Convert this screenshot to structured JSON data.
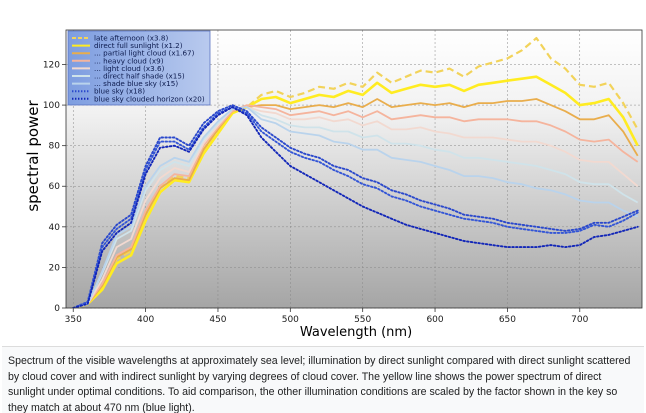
{
  "chart_data": {
    "type": "line",
    "title": "",
    "xlabel": "Wavelength (nm)",
    "ylabel": "spectral power",
    "xlim": [
      345,
      743
    ],
    "ylim": [
      0,
      137
    ],
    "xticks": [
      350,
      400,
      450,
      500,
      550,
      600,
      650,
      700
    ],
    "yticks": [
      0,
      20,
      40,
      60,
      80,
      100,
      120
    ],
    "grid": true,
    "legend_position": "top-left",
    "x": [
      350,
      360,
      370,
      380,
      390,
      400,
      410,
      420,
      430,
      440,
      450,
      460,
      470,
      480,
      490,
      500,
      510,
      520,
      530,
      540,
      550,
      560,
      570,
      580,
      590,
      600,
      610,
      620,
      630,
      640,
      650,
      660,
      670,
      680,
      690,
      700,
      710,
      720,
      730,
      740
    ],
    "series": [
      {
        "name": "late afternoon (x3.8)",
        "color": "#f2d35a",
        "style": "dashed",
        "width": 2.2,
        "values": [
          0,
          2,
          10,
          24,
          28,
          46,
          60,
          65,
          64,
          78,
          88,
          97,
          99,
          105,
          107,
          104,
          106,
          109,
          108,
          111,
          109,
          116,
          111,
          114,
          117,
          116,
          118,
          114,
          119,
          121,
          123,
          127,
          133,
          123,
          118,
          110,
          109,
          111,
          101,
          88
        ]
      },
      {
        "name": "direct full sunlight (x1.2)",
        "color": "#ffec21",
        "style": "solid",
        "width": 2.6,
        "values": [
          0,
          2,
          9,
          22,
          26,
          43,
          57,
          63,
          62,
          76,
          86,
          96,
          99,
          103,
          104,
          101,
          103,
          105,
          104,
          107,
          105,
          111,
          106,
          108,
          110,
          109,
          110,
          107,
          110,
          111,
          112,
          113,
          114,
          110,
          106,
          100,
          101,
          103,
          94,
          80
        ]
      },
      {
        "name": "... partial light cloud (x1.67)",
        "color": "#e9ad4c",
        "style": "solid",
        "width": 1.8,
        "values": [
          0,
          2,
          11,
          25,
          29,
          46,
          59,
          64,
          63,
          78,
          88,
          97,
          99,
          100,
          100,
          98,
          99,
          100,
          99,
          101,
          99,
          103,
          99,
          100,
          101,
          100,
          101,
          99,
          101,
          101,
          102,
          102,
          103,
          100,
          97,
          93,
          93,
          95,
          87,
          75
        ]
      },
      {
        "name": "... heavy cloud (x9)",
        "color": "#f5b49d",
        "style": "solid",
        "width": 1.8,
        "values": [
          0,
          2,
          12,
          26,
          30,
          48,
          60,
          66,
          65,
          80,
          89,
          97,
          100,
          99,
          98,
          95,
          96,
          97,
          95,
          97,
          94,
          97,
          93,
          94,
          95,
          94,
          94,
          92,
          93,
          93,
          93,
          92,
          92,
          90,
          87,
          83,
          82,
          83,
          77,
          72
        ]
      },
      {
        "name": "... light cloud (x3.6)",
        "color": "#f2d9d0",
        "style": "solid",
        "width": 1.8,
        "values": [
          0,
          2,
          14,
          30,
          34,
          53,
          64,
          69,
          67,
          81,
          90,
          98,
          99,
          97,
          96,
          93,
          93,
          94,
          92,
          93,
          90,
          92,
          88,
          88,
          89,
          87,
          86,
          84,
          84,
          84,
          83,
          82,
          82,
          80,
          77,
          73,
          72,
          72,
          66,
          60
        ]
      },
      {
        "name": "... direct half shade (x15)",
        "color": "#cfe3ea",
        "style": "solid",
        "width": 1.8,
        "values": [
          0,
          2,
          17,
          34,
          38,
          58,
          68,
          72,
          70,
          83,
          91,
          98,
          99,
          95,
          93,
          90,
          89,
          89,
          87,
          87,
          84,
          85,
          81,
          81,
          80,
          78,
          77,
          74,
          74,
          73,
          72,
          71,
          70,
          68,
          66,
          62,
          61,
          61,
          56,
          52
        ]
      },
      {
        "name": "... shade blue sky (x15)",
        "color": "#b9d3ec",
        "style": "solid",
        "width": 1.8,
        "values": [
          0,
          2,
          18,
          36,
          40,
          60,
          70,
          74,
          72,
          84,
          92,
          98,
          99,
          93,
          91,
          87,
          86,
          85,
          82,
          81,
          78,
          78,
          74,
          73,
          72,
          70,
          68,
          65,
          65,
          64,
          62,
          61,
          59,
          58,
          56,
          53,
          52,
          52,
          48,
          45
        ]
      },
      {
        "name": "blue sky (x18)",
        "color": "#2a48cc",
        "style": "dotted",
        "width": 1.9,
        "values": [
          0,
          3,
          32,
          41,
          46,
          70,
          84,
          84,
          80,
          91,
          97,
          100,
          97,
          89,
          84,
          79,
          76,
          74,
          70,
          68,
          64,
          62,
          58,
          56,
          53,
          51,
          49,
          46,
          45,
          44,
          42,
          41,
          40,
          39,
          38,
          39,
          42,
          42,
          45,
          48
        ]
      },
      {
        "name": "blue sky (x18)",
        "color": "#3355d6",
        "style": "dotted",
        "width": 1.9,
        "values": [
          0,
          3,
          30,
          39,
          44,
          68,
          82,
          82,
          78,
          89,
          96,
          99,
          96,
          87,
          82,
          77,
          74,
          72,
          68,
          65,
          61,
          59,
          55,
          53,
          50,
          48,
          46,
          44,
          43,
          42,
          40,
          39,
          38,
          37,
          37,
          38,
          41,
          40,
          43,
          47
        ]
      },
      {
        "name": "blue sky clouded horizon (x20)",
        "color": "#1226b8",
        "style": "dotted",
        "width": 1.9,
        "values": [
          0,
          2,
          28,
          37,
          42,
          66,
          79,
          80,
          77,
          88,
          95,
          99,
          95,
          84,
          77,
          70,
          66,
          62,
          58,
          54,
          50,
          47,
          44,
          41,
          39,
          37,
          35,
          33,
          32,
          31,
          30,
          30,
          30,
          31,
          30,
          31,
          35,
          36,
          38,
          40
        ]
      }
    ],
    "legend": [
      {
        "label": "late afternoon (x3.8)",
        "color": "#f2d35a",
        "style": "dashed"
      },
      {
        "label": "direct full sunlight (x1.2)",
        "color": "#ffec21",
        "style": "solid"
      },
      {
        "label": "... partial light cloud (x1.67)",
        "color": "#e9ad4c",
        "style": "solid"
      },
      {
        "label": "... heavy cloud (x9)",
        "color": "#f5b49d",
        "style": "solid"
      },
      {
        "label": "... light cloud (x3.6)",
        "color": "#f2d9d0",
        "style": "solid"
      },
      {
        "label": "... direct half shade (x15)",
        "color": "#cfe3ea",
        "style": "solid"
      },
      {
        "label": "... shade blue sky (x15)",
        "color": "#b9d3ec",
        "style": "solid"
      },
      {
        "label": "blue sky (x18)",
        "color": "#2a48cc",
        "style": "dotted"
      },
      {
        "label": "blue sky clouded horizon (x20)",
        "color": "#1226b8",
        "style": "dotted"
      }
    ]
  },
  "caption": "Spectrum of the visible wavelengths at approximately sea level; illumination by direct sunlight compared with direct sunlight scattered by cloud cover and with indirect sunlight by varying degrees of cloud cover. The yellow line shows the power spectrum of direct sunlight under optimal conditions. To aid comparison, the other illumination conditions are scaled by the factor shown in the key so they match at about 470 nm (blue light)."
}
